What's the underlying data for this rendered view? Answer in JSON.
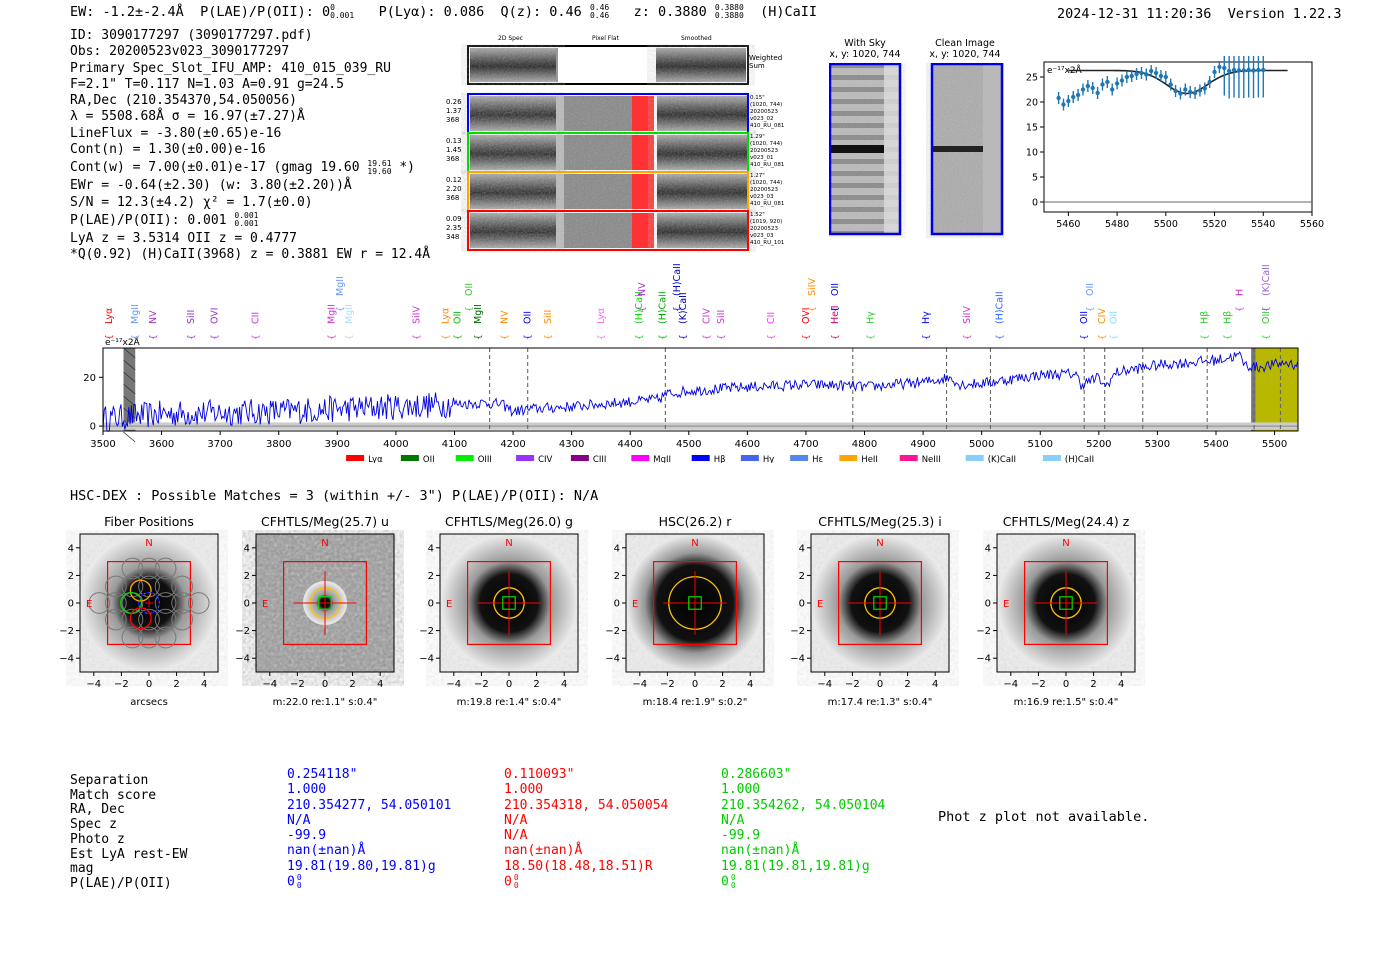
{
  "header": {
    "ew": "EW: -1.2±-2.4Å",
    "plae": "P(LAE)/P(OII): 0",
    "plae_sup": "0",
    "plae_sub": "0.001",
    "plya": "P(Lyα): 0.086",
    "qz": "Q(z): 0.46",
    "qz_sup": "0.46",
    "qz_sub": "0.46",
    "z": "z: 0.3880",
    "z_sup": "0.3880",
    "z_sub": "0.3880",
    "zline": "(H)CaII",
    "timestamp": "2024-12-31 11:20:36",
    "version": "Version 1.22.3"
  },
  "info": {
    "id": "ID: 3090177297 (3090177297.pdf)",
    "obs": "Obs: 20200523v023_3090177297",
    "slot": "Primary Spec_Slot_IFU_AMP: 410_015_039_RU",
    "fwhm": "F=2.1\"  T=0.117  N=1.03  A=0.91  g=24.5",
    "radec": "RA,Dec (210.354370,54.050056)",
    "lambda": "λ = 5508.68Å  σ = 16.97(±7.27)Å",
    "lineflux": "LineFlux = -3.80(±0.65)e-16",
    "contn": "Cont(n) = 1.30(±0.00)e-16",
    "contw": "Cont(w) = 7.00(±0.01)e-17 (gmag 19.60",
    "contw_sup": "19.61",
    "contw_sub": "19.60",
    "contw_end": " *)",
    "ewr": "EWr = -0.64(±2.30) (w: 3.80(±2.20))Å",
    "sn": "S/N = 12.3(±4.2)  χ² = 1.7(±0.0)",
    "plae2": "P(LAE)/P(OII): 0.001",
    "plae2_sup": "0.001",
    "plae2_sub": "0.001",
    "lya": "LyA z = 3.5314   OII z = 0.4777",
    "q": "*Q(0.92) (H)CaII(3968) z = 0.3881  EW r = 12.4Å"
  },
  "cutouts": {
    "col_2d": "2D Spec",
    "col_flat": "Pixel Flat",
    "col_smooth": "Smoothed",
    "weighted": "Weighted",
    "weighted2": "Sum",
    "rows": [
      {
        "n1": "0.26",
        "n2": "1.37",
        "n3": "368",
        "r1": "0.15\"",
        "r2": "(1020, 744)",
        "r3": "20200523",
        "r4": "v023_02",
        "r5": "410_RU_081",
        "color": "#0000ff"
      },
      {
        "n1": "0.13",
        "n2": "1.45",
        "n3": "368",
        "r1": "1.29\"",
        "r2": "(1020, 744)",
        "r3": "20200523",
        "r4": "v023_01",
        "r5": "410_RU_081",
        "color": "#00dd00"
      },
      {
        "n1": "0.12",
        "n2": "2.20",
        "n3": "368",
        "r1": "1.27\"",
        "r2": "(1020, 744)",
        "r3": "20200523",
        "r4": "v023_03",
        "r5": "410_RU_081",
        "color": "#ffa500"
      },
      {
        "n1": "0.09",
        "n2": "2.35",
        "n3": "348",
        "r1": "1.52\"",
        "r2": "(1019, 920)",
        "r3": "20200523",
        "r4": "v023_03",
        "r5": "410_RU_101",
        "color": "#ff0000"
      }
    ]
  },
  "sky": {
    "with_sky": "With Sky",
    "with_sky_xy": "x, y: 1020, 744",
    "clean": "Clean Image",
    "clean_xy": "x, y: 1020, 744"
  },
  "chart_data": [
    {
      "type": "scatter",
      "unit_label": "e⁻¹⁷x2Å",
      "xlim": [
        5450,
        5560
      ],
      "ylim": [
        -2,
        28
      ],
      "xticks": [
        5460,
        5480,
        5500,
        5520,
        5540,
        5560
      ],
      "yticks": [
        0,
        5,
        10,
        15,
        20,
        25
      ],
      "x": [
        5456,
        5458,
        5460,
        5462,
        5464,
        5466,
        5468,
        5470,
        5472,
        5474,
        5476,
        5478,
        5480,
        5482,
        5484,
        5486,
        5488,
        5490,
        5492,
        5494,
        5496,
        5498,
        5500,
        5502,
        5504,
        5506,
        5508,
        5510,
        5512,
        5514,
        5516,
        5518,
        5520,
        5522,
        5524,
        5526,
        5528,
        5530,
        5532,
        5534,
        5536,
        5538,
        5540
      ],
      "y": [
        20.8,
        19.5,
        20.2,
        21,
        21.4,
        22.5,
        23.2,
        22.8,
        21.8,
        23.5,
        24,
        22.5,
        23.7,
        24.3,
        25,
        25.2,
        25.6,
        25.8,
        25.5,
        26.2,
        25.8,
        25.2,
        25,
        23.5,
        22.2,
        21.7,
        22.5,
        22,
        21.8,
        22.3,
        22.7,
        24,
        26,
        27,
        26.8,
        26.2,
        26.4,
        26.3,
        26.3,
        26.4,
        26.3,
        26.4,
        26.4
      ],
      "fit": "gaussian absorption, continuum 26.3, center 5508.7"
    },
    {
      "type": "line",
      "unit_label": "e⁻¹⁷x2Å",
      "xlim": [
        3500,
        5540
      ],
      "ylim": [
        -2,
        32
      ],
      "xticks": [
        3500,
        3600,
        3700,
        3800,
        3900,
        4000,
        4100,
        4200,
        4300,
        4400,
        4500,
        4600,
        4700,
        4800,
        4900,
        5000,
        5100,
        5200,
        5300,
        5400,
        5500
      ],
      "yticks": [
        0,
        20
      ],
      "trend": [
        [
          3500,
          3
        ],
        [
          3550,
          4
        ],
        [
          3600,
          5
        ],
        [
          3700,
          5.5
        ],
        [
          3800,
          6
        ],
        [
          3900,
          7
        ],
        [
          4000,
          8
        ],
        [
          4100,
          9
        ],
        [
          4150,
          9.5
        ],
        [
          4180,
          9
        ],
        [
          4200,
          6
        ],
        [
          4230,
          7
        ],
        [
          4300,
          8
        ],
        [
          4400,
          10
        ],
        [
          4450,
          11
        ],
        [
          4460,
          13
        ],
        [
          4500,
          14.5
        ],
        [
          4600,
          16
        ],
        [
          4700,
          17
        ],
        [
          4780,
          16.5
        ],
        [
          4800,
          16
        ],
        [
          4900,
          18
        ],
        [
          4950,
          20
        ],
        [
          4960,
          17
        ],
        [
          5000,
          17.5
        ],
        [
          5100,
          21
        ],
        [
          5160,
          21.5
        ],
        [
          5170,
          17
        ],
        [
          5200,
          20
        ],
        [
          5210,
          16
        ],
        [
          5230,
          22
        ],
        [
          5300,
          25
        ],
        [
          5400,
          27
        ],
        [
          5440,
          29
        ],
        [
          5450,
          25
        ],
        [
          5470,
          24
        ],
        [
          5520,
          26
        ],
        [
          5540,
          25
        ]
      ],
      "vlines": [
        4160,
        4225,
        4460,
        4780,
        4940,
        5015,
        5175,
        5210,
        5275,
        5385,
        5465,
        5510
      ],
      "labels": [
        {
          "x": 3510,
          "t": "Lyα",
          "c": "#ff0000"
        },
        {
          "x": 3555,
          "t": "MgII",
          "c": "#6699ff"
        },
        {
          "x": 3585,
          "t": "NV",
          "c": "#9933cc"
        },
        {
          "x": 3650,
          "t": "SiII",
          "c": "#9933cc"
        },
        {
          "x": 3690,
          "t": "OVI",
          "c": "#9933cc"
        },
        {
          "x": 3760,
          "t": "CII",
          "c": "#cc33cc"
        },
        {
          "x": 3890,
          "t": "MgII",
          "c": "#cc33cc"
        },
        {
          "x": 3920,
          "t": "MgII",
          "c": "#aaddff"
        },
        {
          "x": 4035,
          "t": "SiIV",
          "c": "#cc33cc"
        },
        {
          "x": 4085,
          "t": "Lyα",
          "c": "#ff8800"
        },
        {
          "x": 4105,
          "t": "OII",
          "c": "#00bb00"
        },
        {
          "x": 4140,
          "t": "MgII",
          "c": "#006600"
        },
        {
          "x": 4185,
          "t": "NV",
          "c": "#ff8800"
        },
        {
          "x": 4225,
          "t": "OII",
          "c": "#0000ff"
        },
        {
          "x": 4260,
          "t": "SiII",
          "c": "#ff8800"
        },
        {
          "x": 4350,
          "t": "Lyα",
          "c": "#ff66ff"
        },
        {
          "x": 4415,
          "t": "(H)CaII",
          "c": "#00dd00"
        },
        {
          "x": 4455,
          "t": "(H)CaII",
          "c": "#00aa00"
        },
        {
          "x": 4490,
          "t": "(K)CaII",
          "c": "#0000aa"
        },
        {
          "x": 4530,
          "t": "CIV",
          "c": "#cc33cc"
        },
        {
          "x": 4555,
          "t": "SiII",
          "c": "#cc33cc"
        },
        {
          "x": 4640,
          "t": "CII",
          "c": "#ff33ff"
        },
        {
          "x": 4700,
          "t": "OVI",
          "c": "#ff0000"
        },
        {
          "x": 4750,
          "t": "HeII",
          "c": "#cc0066"
        },
        {
          "x": 4810,
          "t": "Hγ",
          "c": "#33cc33"
        },
        {
          "x": 4905,
          "t": "Hγ",
          "c": "#0000ff"
        },
        {
          "x": 4975,
          "t": "SiIV",
          "c": "#cc33cc"
        },
        {
          "x": 5030,
          "t": "(H)CaII",
          "c": "#3366ff"
        },
        {
          "x": 5175,
          "t": "OII",
          "c": "#0000ff"
        },
        {
          "x": 5205,
          "t": "CIV",
          "c": "#ff8800"
        },
        {
          "x": 5225,
          "t": "OII",
          "c": "#88ddff"
        },
        {
          "x": 5380,
          "t": "Hβ",
          "c": "#33cc33"
        },
        {
          "x": 5420,
          "t": "Hβ",
          "c": "#33cc33"
        },
        {
          "x": 5485,
          "t": "OIII",
          "c": "#33cc33"
        }
      ],
      "upper_labels": [
        {
          "x": 3905,
          "t": "MgII",
          "c": "#6699ff"
        },
        {
          "x": 4125,
          "t": "OII",
          "c": "#33cc33"
        },
        {
          "x": 4420,
          "t": "NV",
          "c": "#9933cc"
        },
        {
          "x": 4480,
          "t": "(H)CaII",
          "c": "#0000cc"
        },
        {
          "x": 4710,
          "t": "SiIV",
          "c": "#ff8800"
        },
        {
          "x": 4750,
          "t": "OII",
          "c": "#0000ff"
        },
        {
          "x": 5185,
          "t": "OII",
          "c": "#6699ff"
        },
        {
          "x": 5440,
          "t": "H",
          "c": "#cc33cc"
        },
        {
          "x": 5485,
          "t": "(K)CaII",
          "c": "#9966cc"
        }
      ],
      "legend": [
        {
          "name": "Lyα",
          "color": "#ff0000"
        },
        {
          "name": "OII",
          "color": "#007700"
        },
        {
          "name": "OIII",
          "color": "#00ee00"
        },
        {
          "name": "CIV",
          "color": "#9933ff"
        },
        {
          "name": "CIII",
          "color": "#880088"
        },
        {
          "name": "MgII",
          "color": "#ff00ff"
        },
        {
          "name": "Hβ",
          "color": "#0000ff"
        },
        {
          "name": "Hγ",
          "color": "#4466ee"
        },
        {
          "name": "Hε",
          "color": "#5588ee"
        },
        {
          "name": "HeII",
          "color": "#ffa500"
        },
        {
          "name": "NeIII",
          "color": "#ff1493"
        },
        {
          "name": "(K)CaII",
          "color": "#87cefa"
        },
        {
          "name": "(H)CaII",
          "color": "#87cefa"
        }
      ]
    }
  ],
  "hsc": {
    "title": "HSC-DEX : Possible Matches = 3 (within +/- 3\")  P(LAE)/P(OII): N/A",
    "axis_label": "arcsecs",
    "ticks": [
      "−4",
      "−2",
      "0",
      "2",
      "4"
    ],
    "panels": [
      {
        "title": "Fiber Positions",
        "caption": "arcsecs",
        "north": "N",
        "east": "E"
      },
      {
        "title": "CFHTLS/Meg(25.7) u",
        "caption": "m:22.0  re:1.1\"  s:0.4\"",
        "north": "N",
        "east": "E"
      },
      {
        "title": "CFHTLS/Meg(26.0) g",
        "caption": "m:19.8  re:1.4\"  s:0.4\"",
        "north": "N",
        "east": "E"
      },
      {
        "title": "HSC(26.2) r",
        "caption": "m:18.4  re:1.9\"  s:0.2\"",
        "north": "N",
        "east": "E"
      },
      {
        "title": "CFHTLS/Meg(25.3) i",
        "caption": "m:17.4  re:1.3\"  s:0.4\"",
        "north": "N",
        "east": "E"
      },
      {
        "title": "CFHTLS/Meg(24.4) z",
        "caption": "m:16.9  re:1.5\"  s:0.4\"",
        "north": "N",
        "east": "E"
      }
    ]
  },
  "matches": {
    "labels": [
      "Separation",
      "Match score",
      "RA, Dec",
      "Spec z",
      "Photo z",
      "Est LyA rest-EW",
      "mag",
      "P(LAE)/P(OII)"
    ],
    "cols": [
      {
        "color": "#0000ff",
        "vals": [
          "0.254118\"",
          "1.000",
          "210.354277, 54.050101",
          "N/A",
          "-99.9",
          "nan(±nan)Å",
          "19.81(19.80,19.81)g",
          "0"
        ]
      },
      {
        "color": "#ff0000",
        "vals": [
          "0.110093\"",
          "1.000",
          "210.354318, 54.050054",
          "N/A",
          "N/A",
          "nan(±nan)Å",
          "18.50(18.48,18.51)R",
          "0"
        ]
      },
      {
        "color": "#00cc00",
        "vals": [
          "0.286603\"",
          "1.000",
          "210.354262, 54.050104",
          "N/A",
          "-99.9",
          "nan(±nan)Å",
          "19.81(19.81,19.81)g",
          "0"
        ]
      }
    ],
    "frac_sup": "0",
    "frac_sub": "0",
    "photz_note": "Phot z plot not available."
  }
}
